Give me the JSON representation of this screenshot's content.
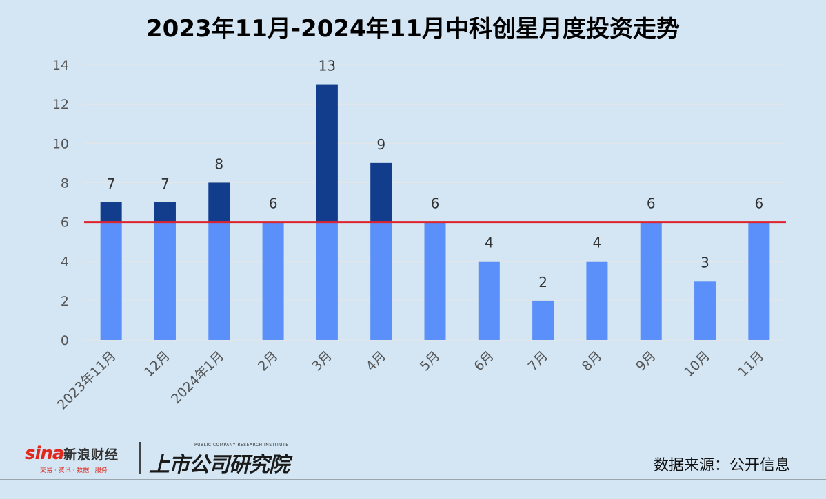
{
  "chart_data": {
    "type": "bar",
    "title": "2023年11月-2024年11月中科创星月度投资走势",
    "categories": [
      "2023年11月",
      "12月",
      "2024年1月",
      "2月",
      "3月",
      "4月",
      "5月",
      "6月",
      "7月",
      "8月",
      "9月",
      "10月",
      "11月"
    ],
    "values": [
      7,
      7,
      8,
      6,
      13,
      9,
      6,
      4,
      2,
      4,
      6,
      3,
      6
    ],
    "yticks": [
      0,
      2,
      4,
      6,
      8,
      10,
      12,
      14
    ],
    "ylim": [
      0,
      14
    ],
    "reference_line": 6,
    "grid": true,
    "colors": {
      "bar_base": "#5b8ff9",
      "bar_above_reference": "#123d8c",
      "reference_line": "#e0232b",
      "grid": "#e6e6e6"
    }
  },
  "footer": {
    "sina_mark": "sina",
    "sina_name": "新浪财经",
    "sina_sub": "交易 · 资讯 · 数据 · 服务",
    "research_sub": "PUBLIC COMPANY RESEARCH INSTITUTE",
    "research_name": "上市公司研究院",
    "source": "数据来源：公开信息"
  }
}
